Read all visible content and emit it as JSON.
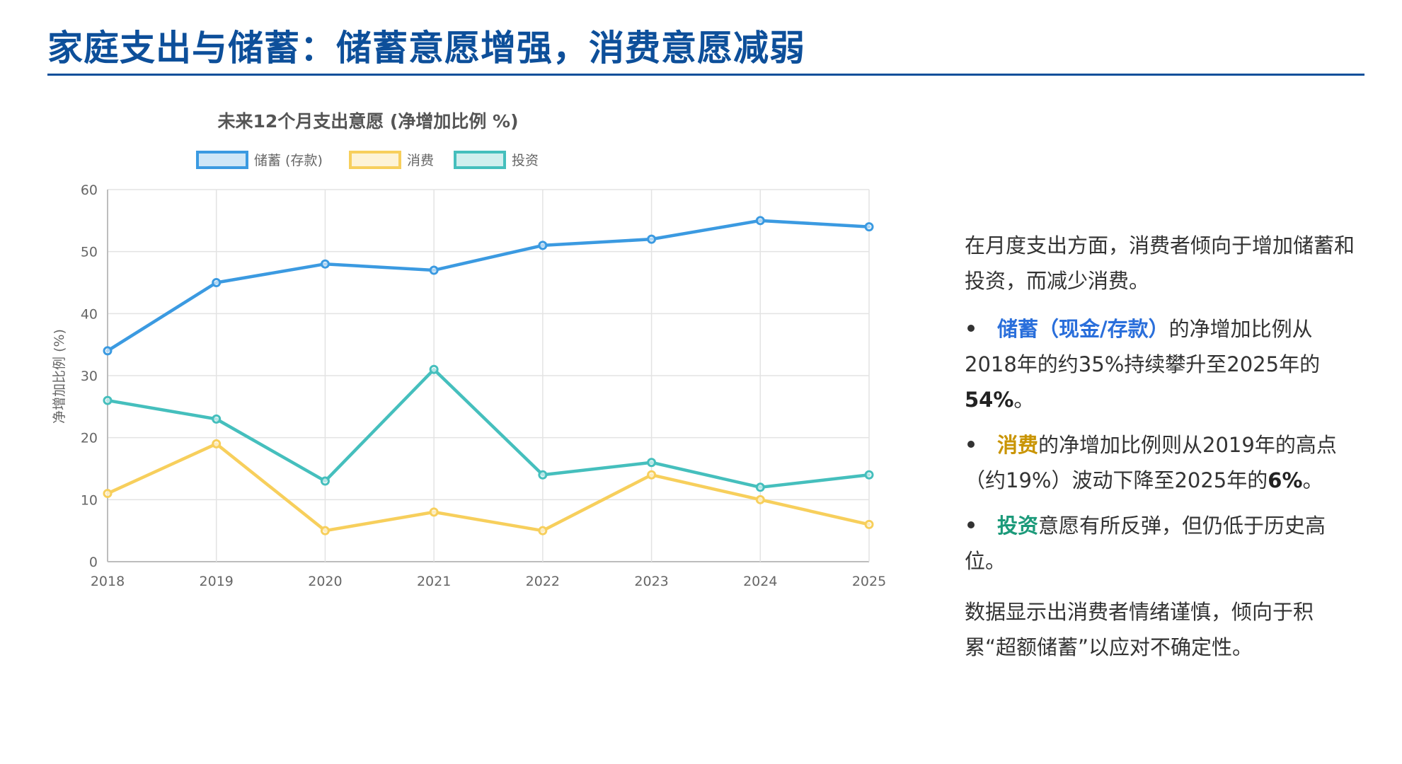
{
  "page": {
    "title": "家庭支出与储蓄：储蓄意愿增强，消费意愿减弱"
  },
  "colors": {
    "title": "#0d4f9a",
    "savings": "#3b9ae1",
    "consumption": "#f7cf5c",
    "investment": "#45bfbd",
    "hl_savings": "#2a6fdb",
    "hl_consumption": "#c99400",
    "hl_investment": "#1c9a7a"
  },
  "chart_data": {
    "type": "line",
    "title": "未来12个月支出意愿 (净增加比例 %)",
    "xlabel": "",
    "ylabel": "净增加比例 (%)",
    "ylim": [
      0,
      60
    ],
    "yticks": [
      0,
      10,
      20,
      30,
      40,
      50,
      60
    ],
    "grid": true,
    "legend_position": "top",
    "x": [
      "2018",
      "2019",
      "2020",
      "2021",
      "2022",
      "2023",
      "2024",
      "2025"
    ],
    "series": [
      {
        "name": "储蓄 (存款)",
        "color": "#3b9ae1",
        "values": [
          34,
          45,
          48,
          47,
          51,
          52,
          55,
          54
        ]
      },
      {
        "name": "消费",
        "color": "#f7cf5c",
        "values": [
          11,
          19,
          5,
          8,
          5,
          14,
          10,
          6
        ]
      },
      {
        "name": "投资",
        "color": "#45bfbd",
        "values": [
          26,
          23,
          13,
          31,
          14,
          16,
          12,
          14
        ]
      }
    ]
  },
  "commentary": {
    "intro": "在月度支出方面，消费者倾向于增加储蓄和投资，而减少消费。",
    "bullets": [
      {
        "highlight": "储蓄（现金/存款）",
        "text": "的净增加比例从2018年的约35%持续攀升至2025年的",
        "strong": "54%",
        "tail": "。"
      },
      {
        "highlight": "消费",
        "text": "的净增加比例则从2019年的高点（约19%）波动下降至2025年的",
        "strong": "6%",
        "tail": "。"
      },
      {
        "highlight": "投资",
        "text": "意愿有所反弹，但仍低于历史高位。",
        "strong": "",
        "tail": ""
      }
    ],
    "closing": "数据显示出消费者情绪谨慎，倾向于积累“超额储蓄”以应对不确定性。"
  }
}
